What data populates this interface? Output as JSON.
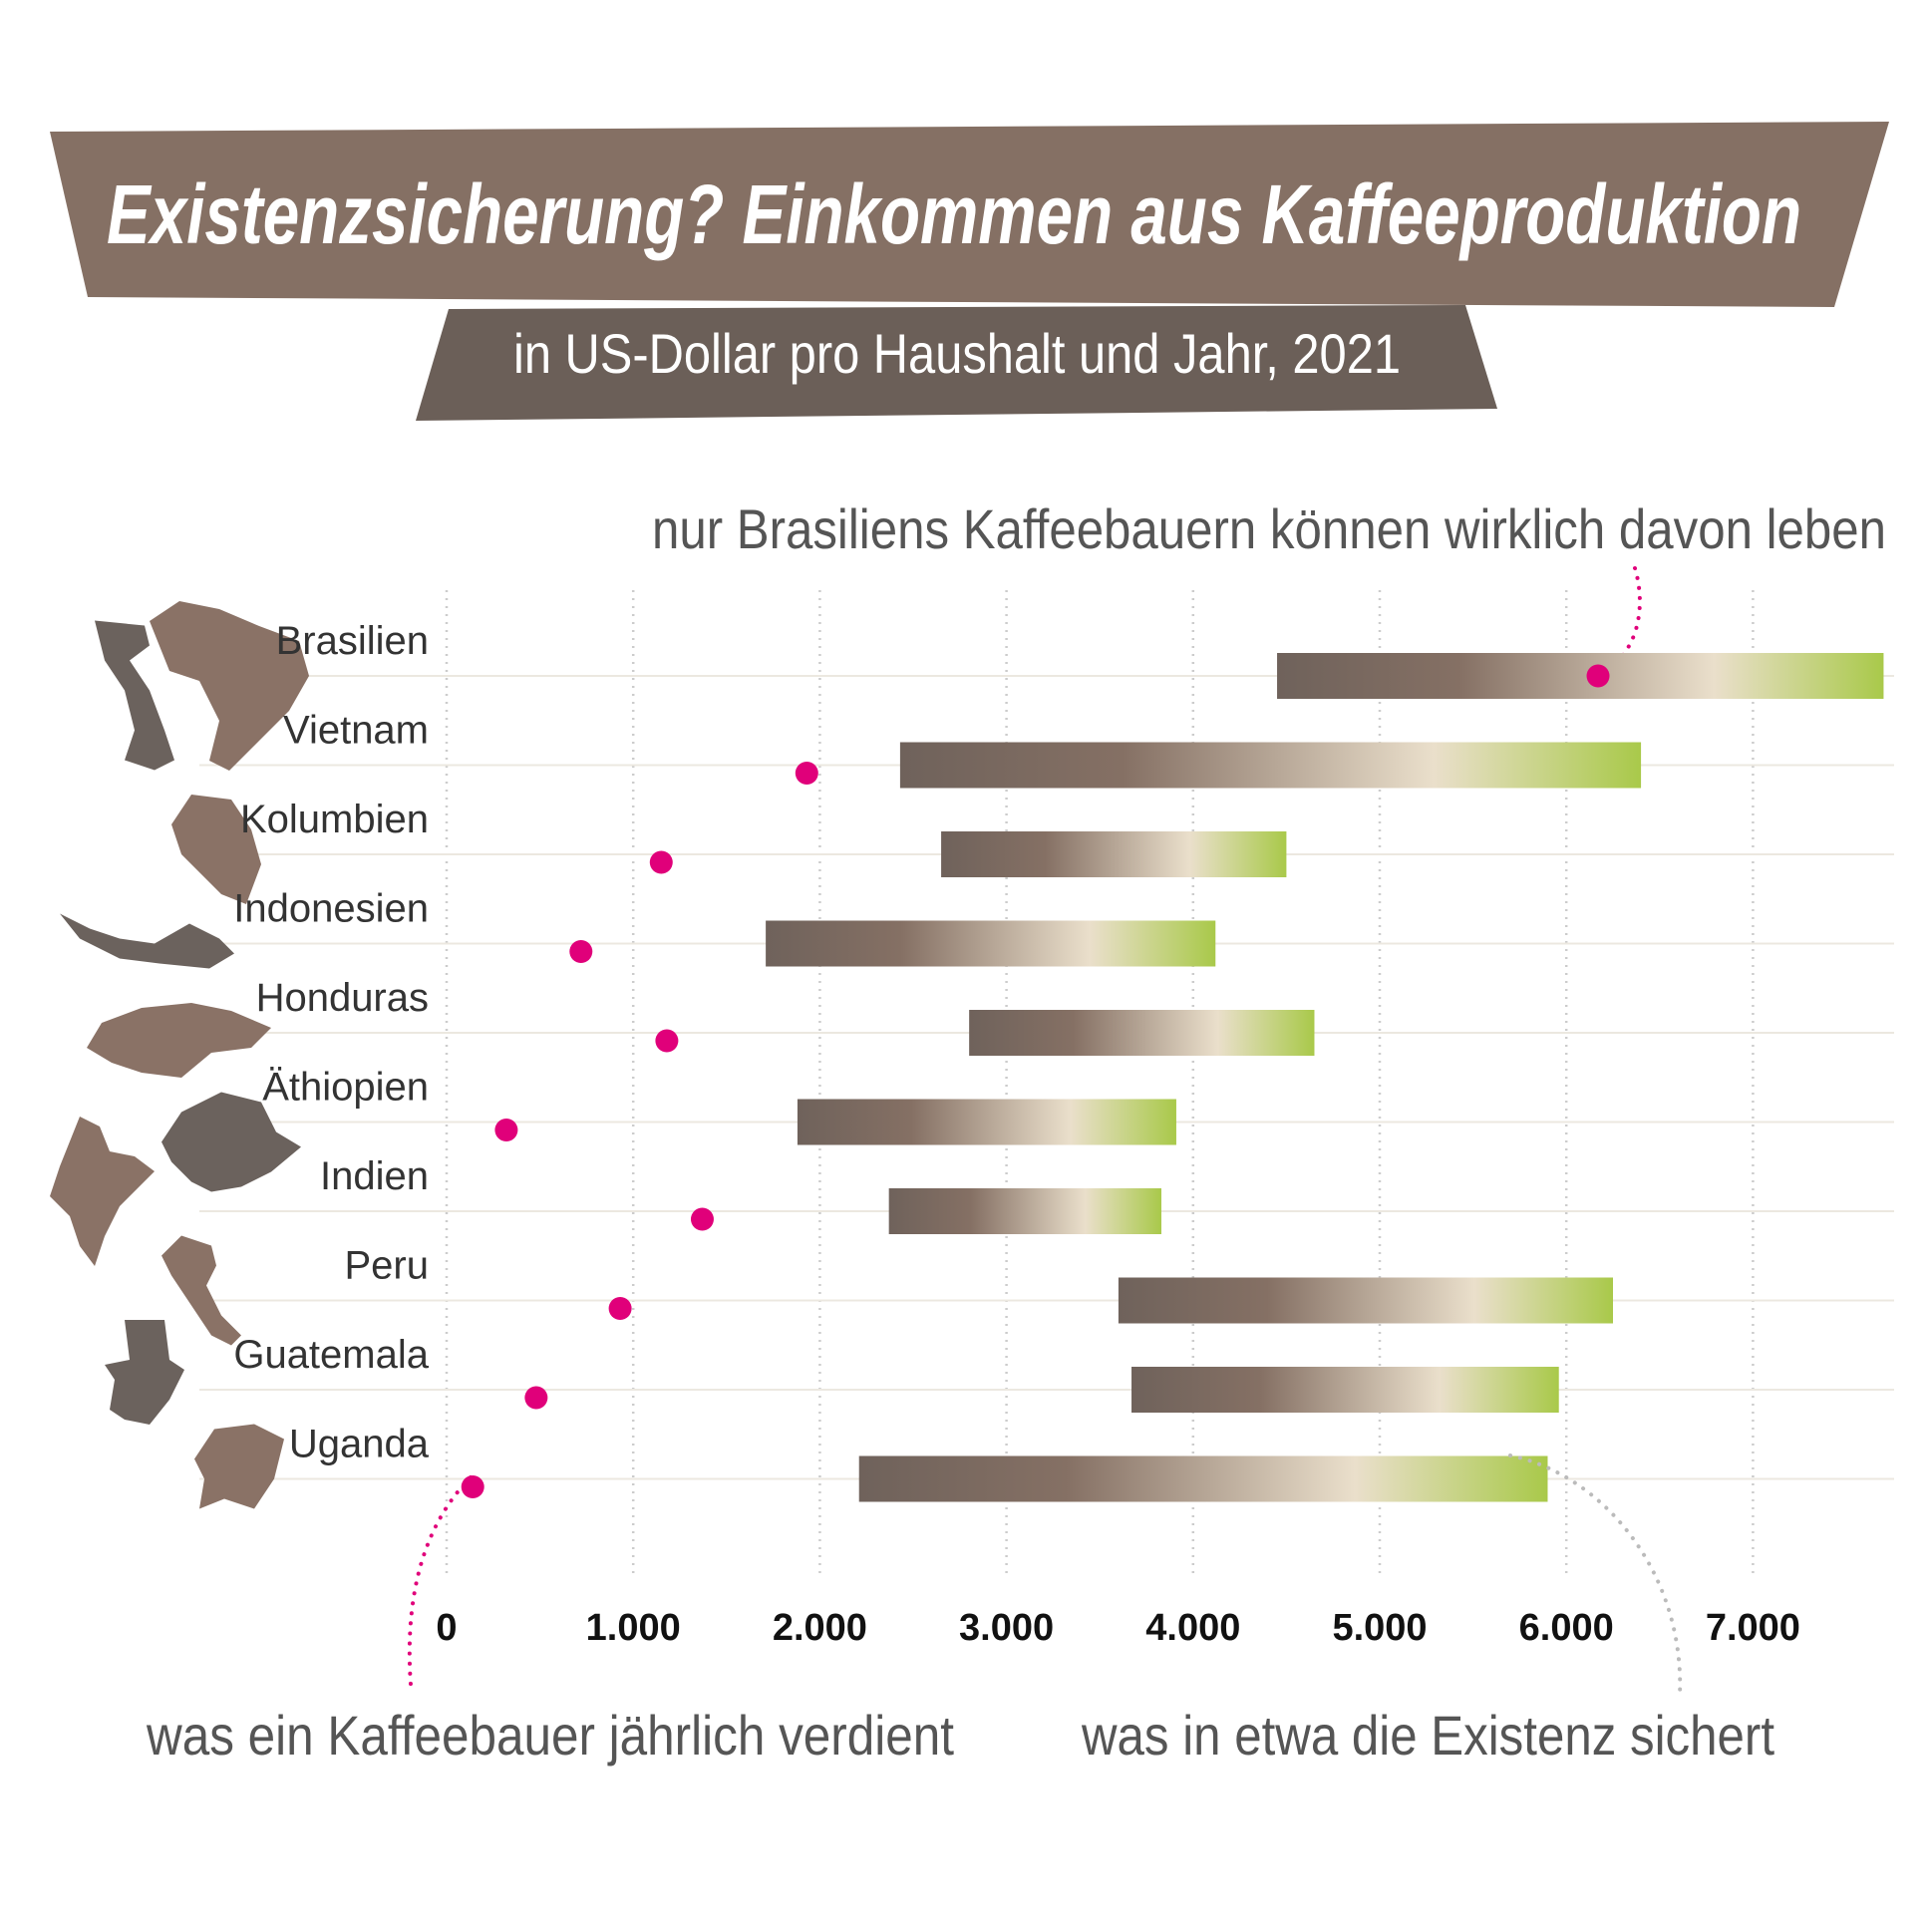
{
  "title": "Existenzsicherung? Einkommen aus Kaffeeproduktion",
  "subtitle": "in US-Dollar pro Haushalt und Jahr, 2021",
  "annotations": {
    "top": "nur Brasiliens Kaffeebauern können wirklich davon leben",
    "dot_legend": "was ein Kaffeebauer jährlich verdient",
    "bar_legend": "was in etwa die Existenz sichert"
  },
  "colors": {
    "banner_title": "#857064",
    "banner_subtitle": "#6b5f58",
    "dot": "#e0007a",
    "bar_start": "#6f625b",
    "bar_mid1": "#857064",
    "bar_mid2": "#eadfcb",
    "bar_end": "#a9c94a",
    "grid": "#cccccc",
    "map_light": "#8a7266",
    "map_dark": "#6b625d"
  },
  "chart_data": {
    "type": "dot-range",
    "title": "Existenzsicherung? Einkommen aus Kaffeeproduktion",
    "subtitle": "in US-Dollar pro Haushalt und Jahr, 2021",
    "xlim": [
      0,
      7000
    ],
    "xticks": [
      "0",
      "1.000",
      "2.000",
      "3.000",
      "4.000",
      "5.000",
      "6.000",
      "7.000"
    ],
    "tick_values": [
      0,
      1000,
      2000,
      3000,
      4000,
      5000,
      6000,
      7000
    ],
    "grid": "vertical dotted",
    "series": [
      {
        "name": "was ein Kaffeebauer jährlich verdient",
        "type": "dot"
      },
      {
        "name": "was in etwa die Existenz sichert",
        "type": "range"
      }
    ],
    "rows": [
      {
        "country": "Brasilien",
        "map_icon": "brazil-map-icon",
        "income": 6170,
        "range": [
          4450,
          7700
        ]
      },
      {
        "country": "Vietnam",
        "map_icon": "vietnam-map-icon",
        "income": 1930,
        "range": [
          2430,
          6400
        ]
      },
      {
        "country": "Kolumbien",
        "map_icon": "colombia-map-icon",
        "income": 1150,
        "range": [
          2650,
          4500
        ]
      },
      {
        "country": "Indonesien",
        "map_icon": "indonesia-map-icon",
        "income": 720,
        "range": [
          1710,
          4120
        ]
      },
      {
        "country": "Honduras",
        "map_icon": "honduras-map-icon",
        "income": 1180,
        "range": [
          2800,
          4650
        ]
      },
      {
        "country": "Äthiopien",
        "map_icon": "ethiopia-map-icon",
        "income": 320,
        "range": [
          1880,
          3910
        ]
      },
      {
        "country": "Indien",
        "map_icon": "india-map-icon",
        "income": 1370,
        "range": [
          2370,
          3830
        ]
      },
      {
        "country": "Peru",
        "map_icon": "peru-map-icon",
        "income": 930,
        "range": [
          3600,
          6250
        ]
      },
      {
        "country": "Guatemala",
        "map_icon": "guatemala-map-icon",
        "income": 480,
        "range": [
          3670,
          5960
        ]
      },
      {
        "country": "Uganda",
        "map_icon": "uganda-map-icon",
        "income": 140,
        "range": [
          2210,
          5900
        ]
      }
    ]
  }
}
